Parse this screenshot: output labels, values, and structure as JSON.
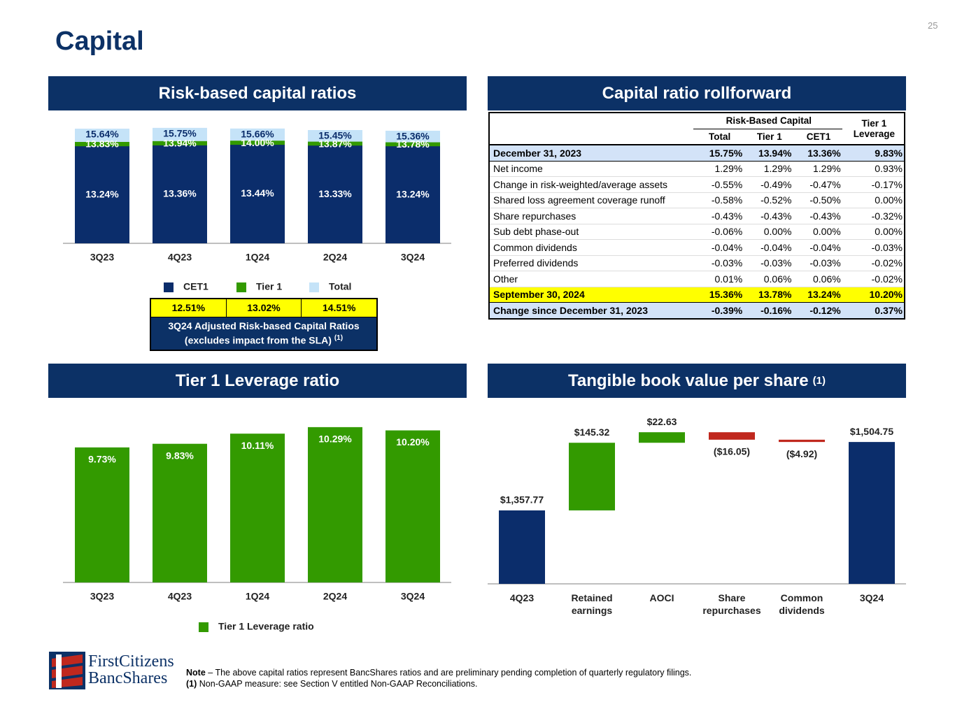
{
  "page_number": "25",
  "title": "Capital",
  "sections": {
    "risk_based": "Risk-based capital ratios",
    "rollforward": "Capital ratio rollforward",
    "leverage": "Tier 1 Leverage ratio",
    "tbv": "Tangible book value per share",
    "tbv_note_ref": "(1)"
  },
  "chart_data": [
    {
      "type": "bar",
      "overlap": true,
      "categories": [
        "3Q23",
        "4Q23",
        "1Q24",
        "2Q24",
        "3Q24"
      ],
      "ylim": [
        0,
        16.5
      ],
      "series": [
        {
          "name": "CET1",
          "color": "#0b2d6b",
          "values": [
            13.24,
            13.36,
            13.44,
            13.33,
            13.24
          ],
          "value_labels": [
            "13.24%",
            "13.36%",
            "13.44%",
            "13.33%",
            "13.24%"
          ]
        },
        {
          "name": "Tier 1",
          "color": "#339a00",
          "values": [
            13.83,
            13.94,
            14.0,
            13.87,
            13.78
          ],
          "value_labels": [
            "13.83%",
            "13.94%",
            "14.00%",
            "13.87%",
            "13.78%"
          ]
        },
        {
          "name": "Total",
          "color": "#c5e3f8",
          "values": [
            15.64,
            15.75,
            15.66,
            15.45,
            15.36
          ],
          "value_labels": [
            "15.64%",
            "15.75%",
            "15.66%",
            "15.45%",
            "15.36%"
          ]
        }
      ]
    },
    {
      "type": "bar",
      "categories": [
        "3Q23",
        "4Q23",
        "1Q24",
        "2Q24",
        "3Q24"
      ],
      "ylim": [
        6,
        10.5
      ],
      "series": [
        {
          "name": "Tier 1 Leverage ratio",
          "color": "#339a00",
          "values": [
            9.73,
            9.83,
            10.11,
            10.29,
            10.2
          ],
          "value_labels": [
            "9.73%",
            "9.83%",
            "10.11%",
            "10.29%",
            "10.20%"
          ]
        }
      ]
    },
    {
      "type": "waterfall",
      "categories": [
        "4Q23",
        "Retained earnings",
        "AOCI",
        "Share repurchases",
        "Common dividends",
        "3Q24"
      ],
      "values": [
        1357.77,
        145.32,
        22.63,
        -16.05,
        -4.92,
        1504.75
      ],
      "value_labels": [
        "$1,357.77",
        "$145.32",
        "$22.63",
        "($16.05)",
        "($4.92)",
        "$1,504.75"
      ],
      "totals": [
        true,
        false,
        false,
        false,
        false,
        true
      ],
      "colors": {
        "total": "#0b2d6b",
        "increase": "#339a00",
        "decrease": "#c0281e"
      },
      "ylim": [
        1200,
        1550
      ]
    }
  ],
  "adjusted_ratios": {
    "values": [
      "12.51%",
      "13.02%",
      "14.51%"
    ],
    "caption_lines": [
      "3Q24 Adjusted Risk-based Capital Ratios",
      "(excludes impact from the SLA)"
    ],
    "note_ref": "(1)"
  },
  "table": {
    "group_header": "Risk-Based Capital",
    "columns": [
      "Total",
      "Tier 1",
      "CET1"
    ],
    "leverage_header": [
      "Tier 1",
      "Leverage"
    ],
    "rows": [
      [
        "December 31, 2023",
        "15.75%",
        "13.94%",
        "13.36%",
        "9.83%"
      ],
      [
        "Net income",
        "1.29%",
        "1.29%",
        "1.29%",
        "0.93%"
      ],
      [
        "Change in risk-weighted/average assets",
        "-0.55%",
        "-0.49%",
        "-0.47%",
        "-0.17%"
      ],
      [
        "Shared loss agreement coverage runoff",
        "-0.58%",
        "-0.52%",
        "-0.50%",
        "0.00%"
      ],
      [
        "Share repurchases",
        "-0.43%",
        "-0.43%",
        "-0.43%",
        "-0.32%"
      ],
      [
        "Sub debt phase-out",
        "-0.06%",
        "0.00%",
        "0.00%",
        "0.00%"
      ],
      [
        "Common dividends",
        "-0.04%",
        "-0.04%",
        "-0.04%",
        "-0.03%"
      ],
      [
        "Preferred dividends",
        "-0.03%",
        "-0.03%",
        "-0.03%",
        "-0.02%"
      ],
      [
        "Other",
        "0.01%",
        "0.06%",
        "0.06%",
        "-0.02%"
      ],
      [
        "September 30, 2024",
        "15.36%",
        "13.78%",
        "13.24%",
        "10.20%"
      ],
      [
        "Change since December 31, 2023",
        "-0.39%",
        "-0.16%",
        "-0.12%",
        "0.37%"
      ]
    ]
  },
  "footnotes": {
    "note_label": "Note",
    "note_text": "– The above capital ratios represent BancShares ratios and are preliminary pending completion of quarterly regulatory filings.",
    "ref_label": "(1)",
    "ref_text": "Non-GAAP measure: see Section V entitled Non-GAAP Reconciliations."
  },
  "logo": {
    "line1": "FirstCitizens",
    "line2": "BancShares"
  }
}
